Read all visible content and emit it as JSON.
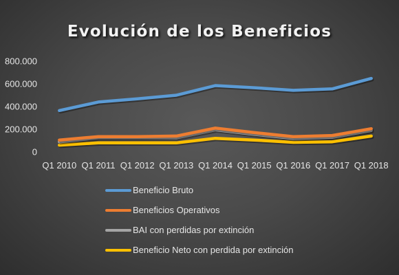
{
  "chart_data": {
    "type": "line",
    "title": "Evolución de los Beneficios",
    "categories": [
      "Q1 2010",
      "Q1 2011",
      "Q1 2012",
      "Q1 2013",
      "Q1 2014",
      "Q1 2015",
      "Q1 2016",
      "Q1 2017",
      "Q1 2018"
    ],
    "y_ticks": [
      "0",
      "200.000",
      "400.000",
      "600.000",
      "800.000"
    ],
    "ylim": [
      0,
      800000
    ],
    "grid": false,
    "legend_position": "bottom",
    "series": [
      {
        "name": "Beneficio Bruto",
        "color": "#5b9bd5",
        "values": [
          365000,
          440000,
          468000,
          500000,
          585000,
          566000,
          543000,
          556000,
          648000
        ]
      },
      {
        "name": "Beneficios Operativos",
        "color": "#ed7d31",
        "values": [
          105000,
          135000,
          135000,
          140000,
          210000,
          170000,
          135000,
          145000,
          205000
        ]
      },
      {
        "name": "BAI con perdidas por extinción",
        "color": "#a5a5a5",
        "values": [
          90000,
          125000,
          125000,
          125000,
          195000,
          155000,
          120000,
          130000,
          190000
        ]
      },
      {
        "name": "Beneficio Neto con perdida por extinción",
        "color": "#ffc000",
        "values": [
          60000,
          80000,
          80000,
          80000,
          120000,
          105000,
          85000,
          90000,
          140000
        ]
      }
    ]
  }
}
